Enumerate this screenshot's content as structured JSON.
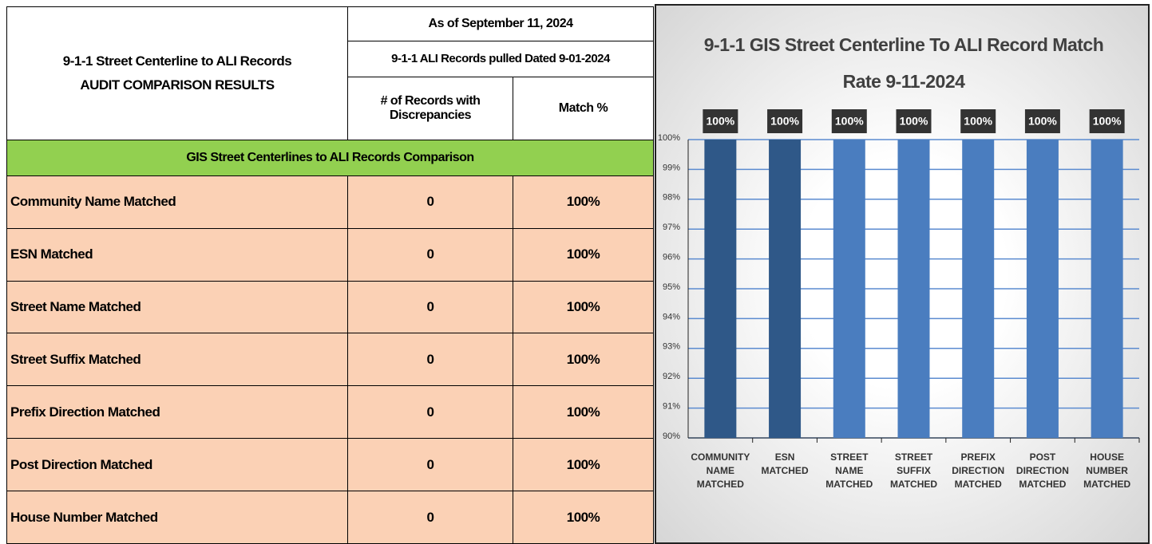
{
  "table": {
    "title": [
      "9-1-1 Street Centerline to ALI Records",
      "AUDIT COMPARISON RESULTS"
    ],
    "header": [
      "As of September 11, 2024",
      "9-1-1 ALI Records pulled Dated 9-01-2024"
    ],
    "columns": [
      "# of Records with Discrepancies",
      "Match %"
    ],
    "section": "GIS Street Centerlines to ALI Records Comparison",
    "rows": [
      [
        "Community Name Matched",
        "0",
        "100%"
      ],
      [
        "ESN Matched",
        "0",
        "100%"
      ],
      [
        "Street Name Matched",
        "0",
        "100%"
      ],
      [
        "Street Suffix Matched",
        "0",
        "100%"
      ],
      [
        "Prefix Direction Matched",
        "0",
        "100%"
      ],
      [
        "Post Direction Matched",
        "0",
        "100%"
      ],
      [
        "House Number Matched",
        "0",
        "100%"
      ]
    ]
  },
  "chart_data": {
    "type": "bar",
    "title": "9-1-1 GIS Street Centerline To ALI Record Match Rate 9-11-2024",
    "categories": [
      "COMMUNITY NAME MATCHED",
      "ESN MATCHED",
      "STREET NAME MATCHED",
      "STREET SUFFIX MATCHED",
      "PREFIX DIRECTION MATCHED",
      "POST DIRECTION MATCHED",
      "HOUSE NUMBER MATCHED"
    ],
    "values": [
      100,
      100,
      100,
      100,
      100,
      100,
      100
    ],
    "value_labels": [
      "100%",
      "100%",
      "100%",
      "100%",
      "100%",
      "100%",
      "100%"
    ],
    "colors": [
      "#2f5888",
      "#2f5888",
      "#4a7dbf",
      "#4a7dbf",
      "#4a7dbf",
      "#4a7dbf",
      "#4a7dbf"
    ],
    "ylim": [
      90,
      100
    ],
    "yticks": [
      {
        "value": 90,
        "label": "90%"
      },
      {
        "value": 91,
        "label": "91%"
      },
      {
        "value": 92,
        "label": "92%"
      },
      {
        "value": 93,
        "label": "93%"
      },
      {
        "value": 94,
        "label": "94%"
      },
      {
        "value": 95,
        "label": "95%"
      },
      {
        "value": 96,
        "label": "96%"
      },
      {
        "value": 97,
        "label": "97%"
      },
      {
        "value": 98,
        "label": "98%"
      },
      {
        "value": 99,
        "label": "99%"
      },
      {
        "value": 100,
        "label": "100%"
      }
    ],
    "grid": true
  }
}
